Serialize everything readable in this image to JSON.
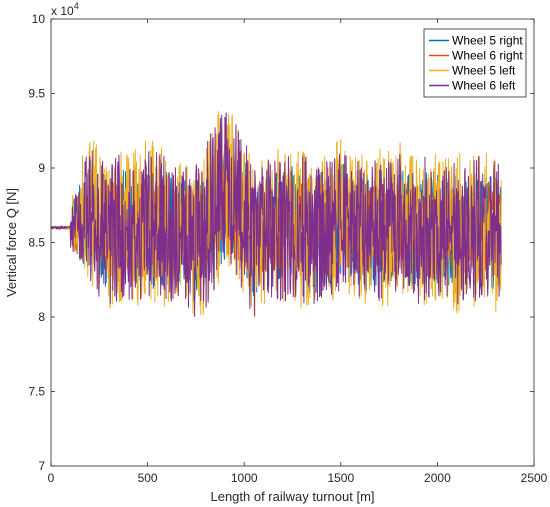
{
  "chart_data": {
    "type": "line",
    "xlabel": "Length of railway turnout [m]",
    "ylabel": "Vertical force Q [N]",
    "y_exponent_base": "x 10",
    "y_exponent_power": "4",
    "xlim": [
      0,
      2500
    ],
    "ylim": [
      7.0,
      10.0
    ],
    "x_ticks": [
      0,
      500,
      1000,
      1500,
      2000,
      2500
    ],
    "x_tick_labels": [
      "0",
      "500",
      "1000",
      "1500",
      "2000",
      "2500"
    ],
    "y_ticks": [
      7,
      7.5,
      8,
      8.5,
      9,
      9.5,
      10
    ],
    "y_tick_labels": [
      "7",
      "7.5",
      "8",
      "8.5",
      "9",
      "9.5",
      "10"
    ],
    "legend_position": "top-right",
    "grid": false,
    "x_data_range": [
      0,
      2330
    ],
    "initial_value": 8.6,
    "series": [
      {
        "name": "Wheel 5 right",
        "color": "#0072BD",
        "x": [
          0,
          100,
          150,
          200,
          250,
          300,
          350,
          400,
          450,
          500,
          550,
          600,
          650,
          700,
          750,
          800,
          850,
          900,
          950,
          1000,
          1050,
          1100,
          1150,
          1200,
          1250,
          1300,
          1350,
          1400,
          1450,
          1500,
          1550,
          1600,
          1650,
          1700,
          1750,
          1800,
          1850,
          1900,
          1950,
          2000,
          2050,
          2100,
          2150,
          2200,
          2250,
          2300,
          2330
        ],
        "y": [
          8.6,
          8.6,
          8.65,
          8.7,
          8.6,
          8.55,
          8.6,
          8.65,
          8.6,
          8.6,
          8.55,
          8.6,
          8.6,
          8.55,
          8.5,
          8.6,
          8.7,
          8.8,
          8.75,
          8.65,
          8.5,
          8.55,
          8.6,
          8.6,
          8.65,
          8.6,
          8.55,
          8.6,
          8.6,
          8.65,
          8.6,
          8.6,
          8.55,
          8.6,
          8.6,
          8.65,
          8.6,
          8.55,
          8.6,
          8.6,
          8.6,
          8.55,
          8.6,
          8.6,
          8.6,
          8.55,
          8.6
        ],
        "spread": [
          0.05,
          0.12,
          0.28,
          0.38,
          0.4,
          0.38,
          0.4,
          0.38,
          0.4,
          0.42,
          0.42,
          0.4,
          0.38,
          0.38,
          0.42,
          0.42,
          0.44,
          0.44,
          0.42,
          0.42,
          0.4,
          0.4,
          0.4,
          0.42,
          0.4,
          0.42,
          0.42,
          0.4,
          0.4,
          0.4,
          0.38,
          0.38,
          0.4,
          0.4,
          0.4,
          0.38,
          0.4,
          0.38,
          0.38,
          0.38,
          0.38,
          0.4,
          0.38,
          0.38,
          0.38,
          0.4,
          0.36
        ]
      },
      {
        "name": "Wheel 6 right",
        "color": "#D95319",
        "x": [
          0,
          100,
          150,
          200,
          250,
          300,
          350,
          400,
          450,
          500,
          550,
          600,
          650,
          700,
          750,
          800,
          850,
          900,
          950,
          1000,
          1050,
          1100,
          1150,
          1200,
          1250,
          1300,
          1350,
          1400,
          1450,
          1500,
          1550,
          1600,
          1650,
          1700,
          1750,
          1800,
          1850,
          1900,
          1950,
          2000,
          2050,
          2100,
          2150,
          2200,
          2250,
          2300,
          2330
        ],
        "y": [
          8.6,
          8.6,
          8.6,
          8.65,
          8.6,
          8.6,
          8.55,
          8.6,
          8.6,
          8.6,
          8.6,
          8.6,
          8.55,
          8.55,
          8.5,
          8.55,
          8.65,
          8.7,
          8.7,
          8.6,
          8.55,
          8.55,
          8.6,
          8.6,
          8.6,
          8.6,
          8.6,
          8.6,
          8.55,
          8.6,
          8.6,
          8.6,
          8.6,
          8.6,
          8.55,
          8.6,
          8.6,
          8.6,
          8.6,
          8.55,
          8.6,
          8.6,
          8.6,
          8.55,
          8.6,
          8.6,
          8.6
        ],
        "spread": [
          0.04,
          0.1,
          0.22,
          0.3,
          0.32,
          0.32,
          0.34,
          0.32,
          0.32,
          0.34,
          0.34,
          0.32,
          0.32,
          0.32,
          0.36,
          0.36,
          0.36,
          0.36,
          0.34,
          0.34,
          0.32,
          0.32,
          0.32,
          0.34,
          0.32,
          0.34,
          0.34,
          0.32,
          0.32,
          0.32,
          0.32,
          0.32,
          0.32,
          0.32,
          0.32,
          0.3,
          0.32,
          0.3,
          0.3,
          0.3,
          0.3,
          0.32,
          0.3,
          0.3,
          0.3,
          0.32,
          0.3
        ]
      },
      {
        "name": "Wheel 5 left",
        "color": "#EDB120",
        "x": [
          0,
          100,
          150,
          200,
          250,
          300,
          350,
          400,
          450,
          500,
          550,
          600,
          650,
          700,
          750,
          800,
          850,
          900,
          950,
          1000,
          1050,
          1100,
          1150,
          1200,
          1250,
          1300,
          1350,
          1400,
          1450,
          1500,
          1550,
          1600,
          1650,
          1700,
          1750,
          1800,
          1850,
          1900,
          1950,
          2000,
          2050,
          2100,
          2150,
          2200,
          2250,
          2300,
          2330
        ],
        "y": [
          8.6,
          8.6,
          8.7,
          8.75,
          8.6,
          8.55,
          8.6,
          8.65,
          8.6,
          8.65,
          8.6,
          8.6,
          8.6,
          8.55,
          8.5,
          8.6,
          8.75,
          8.85,
          8.8,
          8.7,
          8.5,
          8.55,
          8.6,
          8.6,
          8.65,
          8.6,
          8.55,
          8.6,
          8.6,
          8.7,
          8.6,
          8.6,
          8.55,
          8.6,
          8.6,
          8.7,
          8.6,
          8.55,
          8.6,
          8.6,
          8.65,
          8.55,
          8.6,
          8.6,
          8.6,
          8.55,
          8.65
        ],
        "spread": [
          0.05,
          0.15,
          0.35,
          0.5,
          0.52,
          0.5,
          0.52,
          0.5,
          0.55,
          0.58,
          0.55,
          0.52,
          0.5,
          0.5,
          0.55,
          0.58,
          0.6,
          0.58,
          0.55,
          0.6,
          0.55,
          0.52,
          0.52,
          0.55,
          0.52,
          0.55,
          0.55,
          0.5,
          0.52,
          0.52,
          0.5,
          0.5,
          0.52,
          0.55,
          0.52,
          0.5,
          0.52,
          0.5,
          0.55,
          0.5,
          0.52,
          0.55,
          0.5,
          0.55,
          0.52,
          0.55,
          0.5
        ]
      },
      {
        "name": "Wheel 6 left",
        "color": "#7E2F8E",
        "x": [
          0,
          100,
          150,
          200,
          250,
          300,
          350,
          400,
          450,
          500,
          550,
          600,
          650,
          700,
          750,
          800,
          850,
          900,
          950,
          1000,
          1050,
          1100,
          1150,
          1200,
          1250,
          1300,
          1350,
          1400,
          1450,
          1500,
          1550,
          1600,
          1650,
          1700,
          1750,
          1800,
          1850,
          1900,
          1950,
          2000,
          2050,
          2100,
          2150,
          2200,
          2250,
          2300,
          2330
        ],
        "y": [
          8.6,
          8.6,
          8.65,
          8.7,
          8.6,
          8.55,
          8.6,
          8.6,
          8.6,
          8.65,
          8.6,
          8.6,
          8.55,
          8.55,
          8.5,
          8.6,
          8.75,
          8.9,
          8.85,
          8.65,
          8.5,
          8.55,
          8.6,
          8.6,
          8.6,
          8.6,
          8.55,
          8.6,
          8.6,
          8.65,
          8.6,
          8.6,
          8.55,
          8.6,
          8.6,
          8.65,
          8.6,
          8.55,
          8.6,
          8.6,
          8.6,
          8.55,
          8.6,
          8.6,
          8.6,
          8.55,
          8.6
        ],
        "spread": [
          0.05,
          0.14,
          0.32,
          0.45,
          0.48,
          0.48,
          0.5,
          0.48,
          0.5,
          0.52,
          0.5,
          0.48,
          0.48,
          0.48,
          0.52,
          0.55,
          0.55,
          0.55,
          0.52,
          0.55,
          0.5,
          0.48,
          0.48,
          0.5,
          0.48,
          0.5,
          0.5,
          0.48,
          0.48,
          0.48,
          0.46,
          0.46,
          0.48,
          0.5,
          0.48,
          0.46,
          0.48,
          0.46,
          0.5,
          0.46,
          0.48,
          0.5,
          0.46,
          0.5,
          0.48,
          0.5,
          0.46
        ]
      }
    ]
  }
}
